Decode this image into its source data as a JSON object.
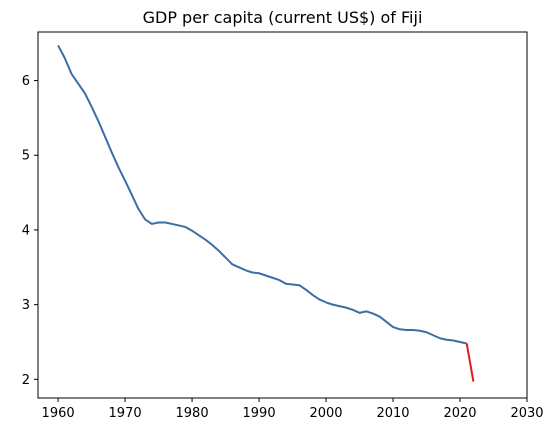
{
  "chart_data": {
    "type": "line",
    "title": "GDP per capita (current US$) of Fiji",
    "xlabel": "",
    "ylabel": "",
    "xlim": [
      1957,
      2030
    ],
    "ylim": [
      1.75,
      6.65
    ],
    "xticks": [
      1960,
      1970,
      1980,
      1990,
      2000,
      2010,
      2020,
      2030
    ],
    "yticks": [
      2,
      3,
      4,
      5,
      6
    ],
    "grid": false,
    "colors": {
      "main": "#3a6ea5",
      "segment": "#e31a1c"
    },
    "series": [
      {
        "values_x": [
          1960,
          1961,
          1962,
          1963,
          1964,
          1965,
          1966,
          1967,
          1968,
          1969,
          1970,
          1971,
          1972,
          1973,
          1974,
          1975,
          1976,
          1977,
          1978,
          1979,
          1980,
          1981,
          1982,
          1983,
          1984,
          1985,
          1986,
          1987,
          1988,
          1989,
          1990,
          1991,
          1992,
          1993,
          1994,
          1995,
          1996,
          1997,
          1998,
          1999,
          2000,
          2001,
          2002,
          2003,
          2004,
          2005,
          2006,
          2007,
          2008,
          2009,
          2010,
          2011,
          2012,
          2013,
          2014,
          2015,
          2016,
          2017,
          2018,
          2019,
          2020,
          2021
        ],
        "values_y": [
          6.47,
          6.3,
          6.09,
          5.96,
          5.83,
          5.65,
          5.46,
          5.25,
          5.04,
          4.84,
          4.66,
          4.47,
          4.28,
          4.14,
          4.08,
          4.1,
          4.1,
          4.08,
          4.06,
          4.04,
          3.99,
          3.93,
          3.87,
          3.8,
          3.72,
          3.63,
          3.54,
          3.5,
          3.46,
          3.43,
          3.42,
          3.39,
          3.36,
          3.33,
          3.28,
          3.27,
          3.26,
          3.2,
          3.13,
          3.07,
          3.03,
          3.0,
          2.98,
          2.96,
          2.93,
          2.89,
          2.91,
          2.88,
          2.84,
          2.77,
          2.7,
          2.67,
          2.66,
          2.66,
          2.65,
          2.63,
          2.59,
          2.55,
          2.53,
          2.52,
          2.5,
          2.48
        ],
        "color": "#3a6ea5"
      },
      {
        "values_x": [
          2021,
          2022
        ],
        "values_y": [
          2.48,
          1.97
        ],
        "color": "#e31a1c"
      }
    ]
  }
}
